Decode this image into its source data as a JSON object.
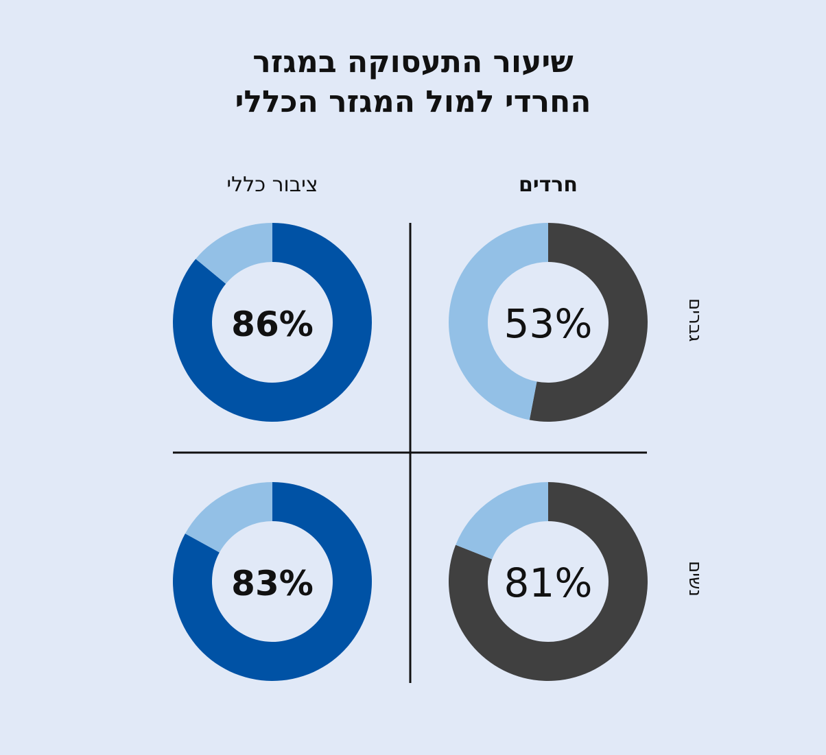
{
  "title_lines": [
    "שיעור התעסוקה במגזר",
    "החרדי למול המגזר הכללי"
  ],
  "colors": {
    "background": "#e1e9f7",
    "general": "#0052a5",
    "haredi": "#404040",
    "remainder": "#93c0e6",
    "divider": "#111111"
  },
  "chart_data": {
    "type": "pie",
    "donut": true,
    "columns": [
      "ציבור כללי",
      "חרדים"
    ],
    "rows": [
      "גברים",
      "נשים"
    ],
    "panels": [
      {
        "column": "ציבור כללי",
        "row": "גברים",
        "value": 86,
        "label": "86%"
      },
      {
        "column": "חרדים",
        "row": "גברים",
        "value": 53,
        "label": "53%"
      },
      {
        "column": "ציבור כללי",
        "row": "נשים",
        "value": 83,
        "label": "83%"
      },
      {
        "column": "חרדים",
        "row": "נשים",
        "value": 81,
        "label": "81%"
      }
    ],
    "unit": "%"
  }
}
